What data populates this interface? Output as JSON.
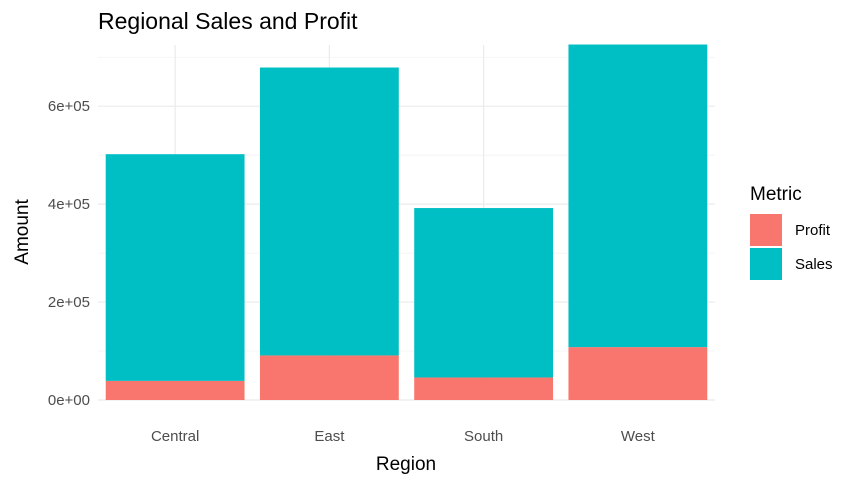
{
  "chart_data": {
    "type": "bar",
    "stacked": true,
    "title": "Regional Sales and Profit",
    "xlabel": "Region",
    "ylabel": "Amount",
    "categories": [
      "Central",
      "East",
      "South",
      "West"
    ],
    "series": [
      {
        "name": "Profit",
        "values": [
          39000,
          91000,
          46000,
          108000
        ]
      },
      {
        "name": "Sales",
        "values": [
          463000,
          588000,
          346000,
          618000
        ]
      }
    ],
    "ylim": [
      0,
      725000
    ],
    "yticks": [
      {
        "value": 0,
        "label": "0e+00"
      },
      {
        "value": 200000,
        "label": "2e+05"
      },
      {
        "value": 400000,
        "label": "4e+05"
      },
      {
        "value": 600000,
        "label": "6e+05"
      }
    ],
    "legend": {
      "title": "Metric",
      "position": "right"
    },
    "grid": true,
    "colors": {
      "Profit": "#f8766d",
      "Sales": "#00bfc4"
    }
  }
}
